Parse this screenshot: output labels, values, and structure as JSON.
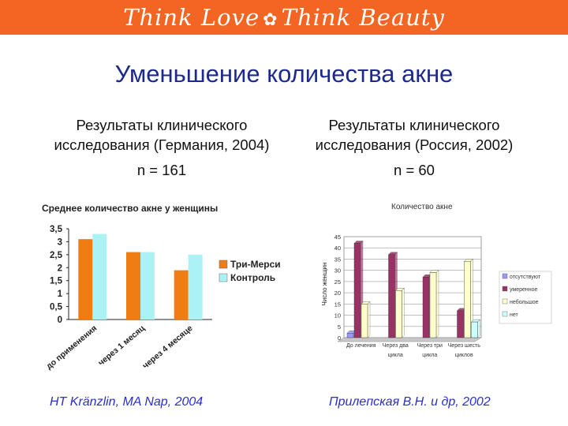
{
  "header": {
    "logo_text_1": "Think Love",
    "logo_text_2": "Think Beauty"
  },
  "slide": {
    "title": "Уменьшение количества акне",
    "left": {
      "study": [
        "Результаты клинического",
        "исследования (Германия, 2004)"
      ],
      "n": "n = 161",
      "citation": "HT Kränzlin, MA Nap, 2004"
    },
    "right": {
      "study": [
        "Результаты клинического",
        "исследования (Россия, 2002)"
      ],
      "n": "n = 60",
      "citation": "Прилепская В.Н. и др, 2002"
    }
  },
  "colors": {
    "banner": "#f26522",
    "title": "#1b2a8c",
    "citation": "#2b2fc9"
  },
  "chart_data": [
    {
      "type": "bar",
      "title": "Среднее количество акне у женщины",
      "categories": [
        "до применения",
        "через 1 месяц",
        "через 4 месяце"
      ],
      "series": [
        {
          "name": "Три-Мерси",
          "values": [
            3.1,
            2.6,
            1.9
          ],
          "color": "#f07d14"
        },
        {
          "name": "Контроль",
          "values": [
            3.3,
            2.6,
            2.5
          ],
          "color": "#aaf2f4"
        }
      ],
      "ylim": [
        0,
        3.5
      ],
      "yticks": [
        "0",
        "0,5",
        "1",
        "1,5",
        "2",
        "2,5",
        "3",
        "3,5"
      ],
      "legend": "right",
      "grid": false
    },
    {
      "type": "bar",
      "title": "Количество акне",
      "ylabel": "Число женщин",
      "categories": [
        "До лечения",
        "Через два",
        "Через три",
        "Через шесть"
      ],
      "category_sublabels": [
        "",
        "цикла",
        "цикла",
        "циклов"
      ],
      "series": [
        {
          "name": "отсутствуют",
          "values": [
            2,
            0,
            0,
            0
          ],
          "color": "#9999ff"
        },
        {
          "name": "умеренное",
          "values": [
            42,
            37,
            27,
            12
          ],
          "color": "#993366"
        },
        {
          "name": "небольшое",
          "values": [
            15,
            21,
            29,
            34
          ],
          "color": "#ffffcc"
        },
        {
          "name": "нет",
          "values": [
            0,
            0,
            0,
            7
          ],
          "color": "#ccffff"
        }
      ],
      "ylim": [
        0,
        45
      ],
      "yticks": [
        "0",
        "5",
        "10",
        "15",
        "20",
        "25",
        "30",
        "35",
        "40",
        "45"
      ],
      "legend": "right",
      "grid": true
    }
  ]
}
